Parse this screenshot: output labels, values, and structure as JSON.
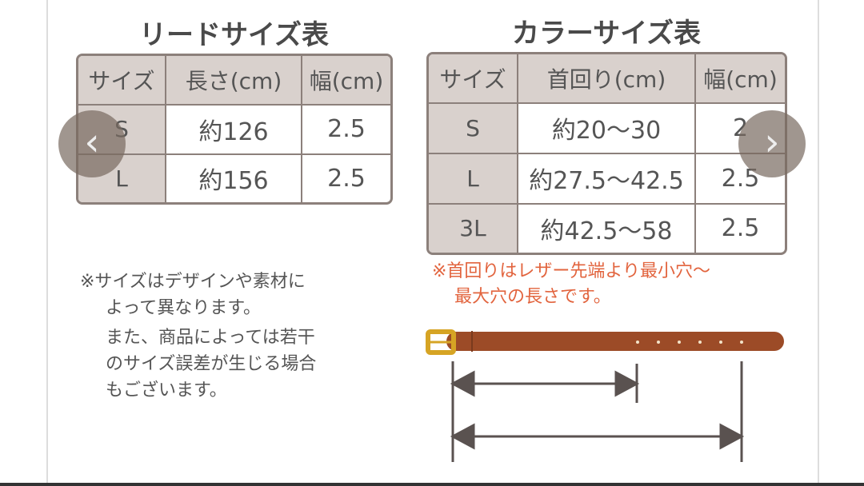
{
  "lead": {
    "title": "リードサイズ表",
    "headers": [
      "サイズ",
      "長さ(cm)",
      "幅(cm)"
    ],
    "rows": [
      [
        "S",
        "約126",
        "2.5"
      ],
      [
        "L",
        "約156",
        "2.5"
      ]
    ]
  },
  "collar": {
    "title": "カラーサイズ表",
    "headers": [
      "サイズ",
      "首回り(cm)",
      "幅(cm)"
    ],
    "rows": [
      [
        "S",
        "約20〜30",
        "2"
      ],
      [
        "L",
        "約27.5〜42.5",
        "2.5"
      ],
      [
        "3L",
        "約42.5〜58",
        "2.5"
      ]
    ]
  },
  "notes": {
    "left": [
      "※サイズはデザインや素材に",
      "よって異なります。",
      "また、商品によっては若干",
      "のサイズ誤差が生じる場合",
      "もございます。"
    ],
    "right": [
      "※首回りはレザー先端より最小穴〜",
      "最大穴の長さです。"
    ]
  },
  "nav": {
    "prev": "‹",
    "next": "›"
  },
  "colors": {
    "belt": "#9c4b27",
    "buckle": "#d6a424",
    "note_red": "#e2643e",
    "header_bg": "#d9d1cd"
  }
}
